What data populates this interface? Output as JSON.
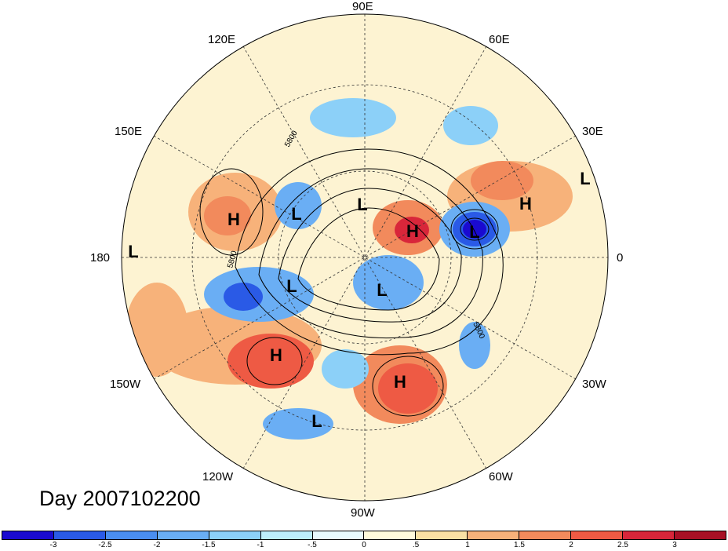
{
  "title": "Day 2007102200",
  "longitude_labels": {
    "e90": "90E",
    "e120": "120E",
    "e60": "60E",
    "e150": "150E",
    "e30": "30E",
    "d180": "180",
    "d0": "0",
    "w150": "150W",
    "w30": "30W",
    "w120": "120W",
    "w60": "60W",
    "w90": "90W"
  },
  "pressure_centers": [
    {
      "label": "L"
    },
    {
      "label": "L"
    },
    {
      "label": "L"
    },
    {
      "label": "L"
    },
    {
      "label": "L"
    },
    {
      "label": "L"
    },
    {
      "label": "L"
    },
    {
      "label": "L"
    },
    {
      "label": "H"
    },
    {
      "label": "H"
    },
    {
      "label": "H"
    },
    {
      "label": "H"
    },
    {
      "label": "H"
    }
  ],
  "contour_labels": [
    "5800",
    "5800",
    "5800"
  ],
  "colorbar": {
    "colors": [
      "#1a0ad0",
      "#2a5ae6",
      "#4a8ef0",
      "#6aaef4",
      "#8cd0f8",
      "#bdeffc",
      "#e8fbfe",
      "#fffbdc",
      "#fae1a4",
      "#f7b27a",
      "#f28a5c",
      "#ee5a44",
      "#d8263a",
      "#a81025"
    ],
    "labels": [
      "-3",
      "-2.5",
      "-2",
      "-1.5",
      "-1",
      "-.5",
      "0",
      ".5",
      "1",
      "1.5",
      "2",
      "2.5",
      "3"
    ]
  }
}
